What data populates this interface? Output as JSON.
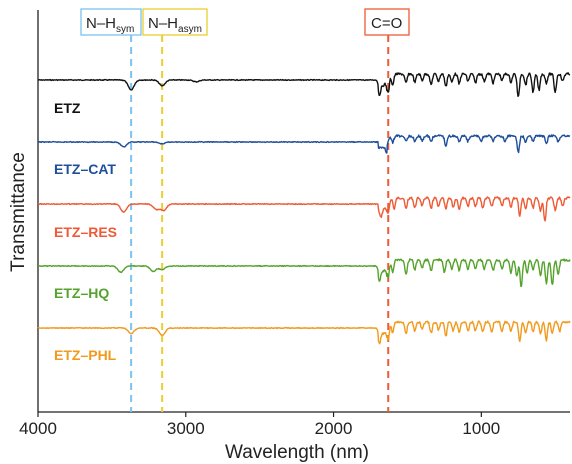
{
  "chart_data": {
    "type": "line",
    "xlabel": "Wavelength (nm)",
    "ylabel": "Transmittance",
    "xlim": [
      4000,
      400
    ],
    "x_ticks": [
      4000,
      3000,
      2000,
      1000
    ],
    "x_tick_labels": [
      "4000",
      "3000",
      "2000",
      "1000"
    ],
    "y_ticks_shown": false,
    "grid": false,
    "legend": "inline labels at left of each trace",
    "reference_lines": [
      {
        "label_main": "N–H",
        "label_sub": "sym",
        "x": 3370,
        "color": "#7cc4ee",
        "style": "dashed"
      },
      {
        "label_main": "N–H",
        "label_sub": "asym",
        "x": 3160,
        "color": "#e8cf32",
        "style": "dashed"
      },
      {
        "label_main": "C=O",
        "label_sub": "",
        "x": 1630,
        "color": "#ee5a35",
        "style": "dashed"
      }
    ],
    "series": [
      {
        "name": "ETZ",
        "color": "#111111",
        "baseline_offset": 4,
        "peaks": [
          [
            3370,
            0.55
          ],
          [
            3160,
            0.32
          ],
          [
            2930,
            0.1
          ],
          [
            1690,
            0.5
          ],
          [
            1630,
            1.0
          ],
          [
            1600,
            0.6
          ],
          [
            1510,
            0.5
          ],
          [
            1450,
            0.45
          ],
          [
            1400,
            0.35
          ],
          [
            1340,
            0.6
          ],
          [
            1290,
            0.4
          ],
          [
            1240,
            0.7
          ],
          [
            1200,
            0.45
          ],
          [
            1150,
            0.55
          ],
          [
            1090,
            0.4
          ],
          [
            1040,
            0.5
          ],
          [
            980,
            0.4
          ],
          [
            920,
            0.5
          ],
          [
            860,
            0.35
          ],
          [
            800,
            0.45
          ],
          [
            750,
            1.3
          ],
          [
            700,
            0.6
          ],
          [
            650,
            1.0
          ],
          [
            610,
            0.9
          ],
          [
            560,
            0.5
          ],
          [
            500,
            1.0
          ],
          [
            450,
            0.4
          ]
        ]
      },
      {
        "name": "ETZ–CAT",
        "color": "#1f4e9b",
        "baseline_offset": 3,
        "peaks": [
          [
            3420,
            0.28
          ],
          [
            3160,
            0.1
          ],
          [
            1640,
            0.5
          ],
          [
            1600,
            0.35
          ],
          [
            1510,
            0.3
          ],
          [
            1450,
            0.3
          ],
          [
            1400,
            0.25
          ],
          [
            1340,
            0.3
          ],
          [
            1240,
            0.55
          ],
          [
            1150,
            0.3
          ],
          [
            1090,
            0.3
          ],
          [
            1000,
            0.3
          ],
          [
            920,
            0.3
          ],
          [
            840,
            0.35
          ],
          [
            750,
            0.9
          ],
          [
            700,
            0.35
          ],
          [
            650,
            0.3
          ],
          [
            560,
            0.45
          ],
          [
            480,
            0.3
          ]
        ]
      },
      {
        "name": "ETZ–RES",
        "color": "#ee5a35",
        "baseline_offset": 2,
        "peaks": [
          [
            3420,
            0.45
          ],
          [
            3200,
            0.3
          ],
          [
            3150,
            0.35
          ],
          [
            1680,
            0.4
          ],
          [
            1630,
            0.8
          ],
          [
            1590,
            0.6
          ],
          [
            1510,
            0.6
          ],
          [
            1450,
            0.55
          ],
          [
            1400,
            0.45
          ],
          [
            1340,
            0.6
          ],
          [
            1290,
            0.45
          ],
          [
            1240,
            0.65
          ],
          [
            1190,
            0.5
          ],
          [
            1150,
            0.6
          ],
          [
            1090,
            0.45
          ],
          [
            1040,
            0.5
          ],
          [
            990,
            0.55
          ],
          [
            930,
            0.5
          ],
          [
            860,
            0.45
          ],
          [
            800,
            0.5
          ],
          [
            740,
            1.0
          ],
          [
            700,
            0.6
          ],
          [
            650,
            0.55
          ],
          [
            600,
            0.75
          ],
          [
            570,
            1.3
          ],
          [
            500,
            0.65
          ],
          [
            450,
            0.45
          ]
        ]
      },
      {
        "name": "ETZ–HQ",
        "color": "#55a32c",
        "baseline_offset": 1,
        "peaks": [
          [
            3440,
            0.35
          ],
          [
            3220,
            0.3
          ],
          [
            3160,
            0.2
          ],
          [
            1690,
            0.5
          ],
          [
            1630,
            0.9
          ],
          [
            1600,
            0.65
          ],
          [
            1510,
            0.8
          ],
          [
            1450,
            0.55
          ],
          [
            1400,
            0.45
          ],
          [
            1340,
            0.6
          ],
          [
            1250,
            0.7
          ],
          [
            1200,
            0.55
          ],
          [
            1150,
            0.6
          ],
          [
            1090,
            0.5
          ],
          [
            1040,
            0.5
          ],
          [
            980,
            0.5
          ],
          [
            920,
            0.6
          ],
          [
            860,
            0.5
          ],
          [
            800,
            0.7
          ],
          [
            760,
            0.9
          ],
          [
            730,
            1.5
          ],
          [
            690,
            0.7
          ],
          [
            650,
            0.6
          ],
          [
            600,
            0.9
          ],
          [
            560,
            1.3
          ],
          [
            520,
            1.4
          ],
          [
            480,
            0.8
          ]
        ]
      },
      {
        "name": "ETZ–PHL",
        "color": "#f29a1d",
        "baseline_offset": 0,
        "peaks": [
          [
            3370,
            0.3
          ],
          [
            3160,
            0.4
          ],
          [
            1690,
            0.5
          ],
          [
            1630,
            0.9
          ],
          [
            1600,
            0.6
          ],
          [
            1510,
            0.65
          ],
          [
            1450,
            0.5
          ],
          [
            1400,
            0.4
          ],
          [
            1340,
            0.6
          ],
          [
            1290,
            0.45
          ],
          [
            1240,
            0.8
          ],
          [
            1190,
            0.5
          ],
          [
            1150,
            0.55
          ],
          [
            1090,
            0.5
          ],
          [
            1040,
            0.5
          ],
          [
            990,
            0.55
          ],
          [
            930,
            0.55
          ],
          [
            860,
            0.5
          ],
          [
            800,
            0.55
          ],
          [
            740,
            1.1
          ],
          [
            700,
            0.6
          ],
          [
            650,
            0.55
          ],
          [
            600,
            0.7
          ],
          [
            560,
            1.0
          ],
          [
            520,
            0.6
          ],
          [
            470,
            0.55
          ]
        ]
      }
    ]
  }
}
